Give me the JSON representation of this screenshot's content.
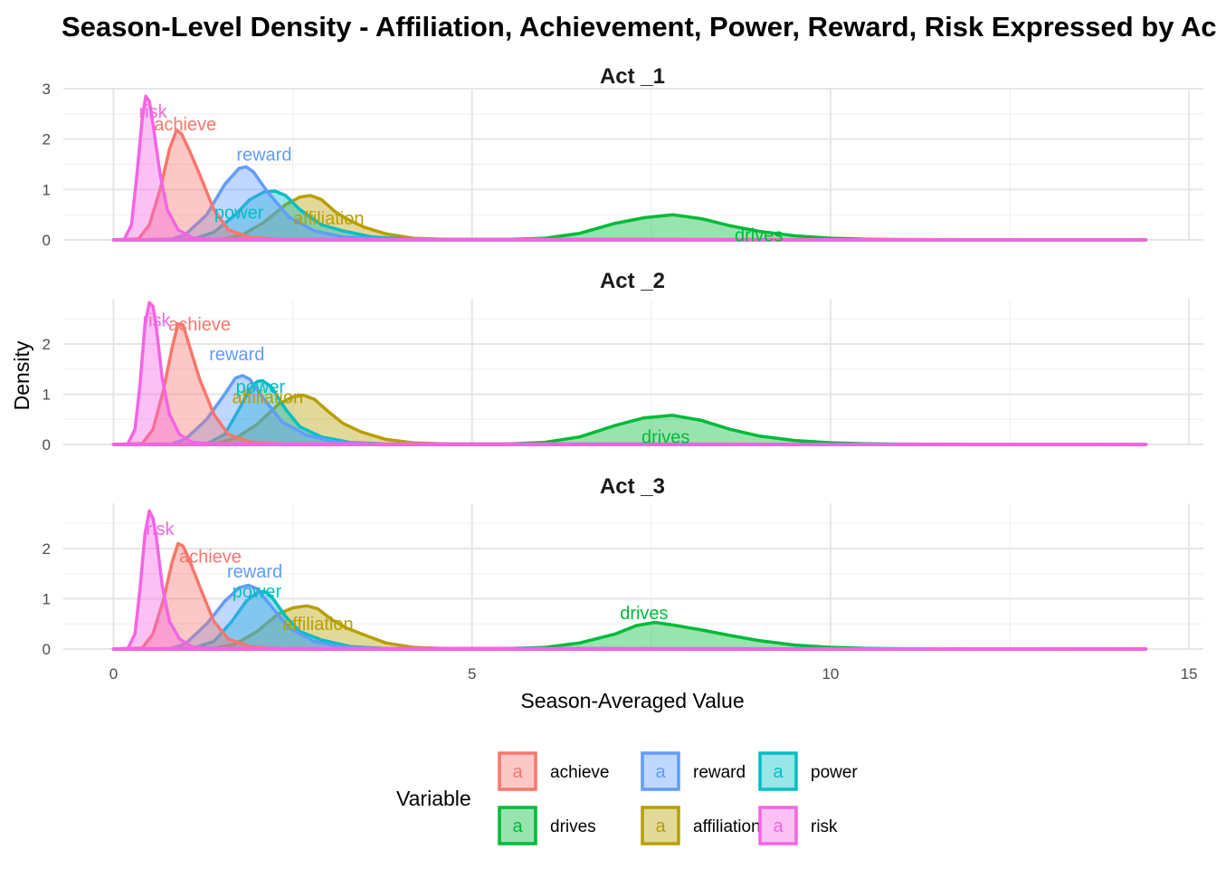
{
  "chart_data": {
    "type": "area",
    "title": "Season-Level Density - Affiliation, Achievement, Power, Reward, Risk Expressed by Act",
    "xlabel": "Season-Averaged Value",
    "ylabel": "Density",
    "xlim": [
      -0.7,
      15.2
    ],
    "x_ticks": [
      0,
      5,
      10,
      15
    ],
    "grid": true,
    "legend": {
      "title": "Variable",
      "position": "bottom",
      "key_glyph": "a",
      "items": [
        {
          "name": "achieve",
          "color": "#F8766D"
        },
        {
          "name": "drives",
          "color": "#00BA38"
        },
        {
          "name": "reward",
          "color": "#619CFF"
        },
        {
          "name": "affiliation",
          "color": "#B79F00"
        },
        {
          "name": "power",
          "color": "#00BFC4"
        },
        {
          "name": "risk",
          "color": "#F564E3"
        }
      ]
    },
    "panels": [
      {
        "strip": "Act _1",
        "ylim": [
          0,
          3
        ],
        "y_ticks": [
          0,
          1,
          2,
          3
        ],
        "series": [
          {
            "name": "drives",
            "x": [
              0,
              4.5,
              5.5,
              6,
              6.5,
              7,
              7.4,
              7.8,
              8.2,
              8.6,
              9,
              9.5,
              10,
              10.5,
              11,
              12,
              13,
              14.4
            ],
            "y": [
              0,
              0.005,
              0.01,
              0.03,
              0.13,
              0.33,
              0.44,
              0.5,
              0.42,
              0.28,
              0.17,
              0.08,
              0.035,
              0.015,
              0.008,
              0.004,
              0.002,
              0
            ],
            "label_xy": [
              9,
              0.1
            ]
          },
          {
            "name": "affiliation",
            "x": [
              0,
              1.5,
              1.8,
              2.1,
              2.4,
              2.6,
              2.75,
              2.9,
              3.1,
              3.3,
              3.5,
              3.8,
              4.2,
              4.8,
              14.4
            ],
            "y": [
              0,
              0.01,
              0.1,
              0.35,
              0.7,
              0.85,
              0.88,
              0.8,
              0.55,
              0.38,
              0.25,
              0.12,
              0.03,
              0.005,
              0
            ],
            "label_xy": [
              3.0,
              0.43
            ]
          },
          {
            "name": "power",
            "x": [
              0,
              1.1,
              1.4,
              1.7,
              1.9,
              2.1,
              2.25,
              2.4,
              2.6,
              2.9,
              3.2,
              3.6,
              4.2,
              14.4
            ],
            "y": [
              0,
              0.01,
              0.15,
              0.5,
              0.8,
              0.95,
              0.97,
              0.88,
              0.6,
              0.3,
              0.18,
              0.06,
              0.01,
              0
            ],
            "label_xy": [
              1.75,
              0.55
            ]
          },
          {
            "name": "reward",
            "x": [
              0,
              0.8,
              1.0,
              1.3,
              1.55,
              1.75,
              1.85,
              1.95,
              2.15,
              2.45,
              2.8,
              3.2,
              3.8,
              14.4
            ],
            "y": [
              0,
              0.01,
              0.1,
              0.5,
              1.1,
              1.42,
              1.45,
              1.35,
              0.95,
              0.45,
              0.18,
              0.06,
              0.01,
              0
            ],
            "label_xy": [
              2.1,
              1.7
            ]
          },
          {
            "name": "achieve",
            "x": [
              0,
              0.35,
              0.5,
              0.65,
              0.78,
              0.88,
              0.95,
              1.05,
              1.2,
              1.4,
              1.6,
              1.9,
              2.3,
              14.4
            ],
            "y": [
              0,
              0.02,
              0.3,
              1.0,
              1.8,
              2.18,
              2.1,
              1.8,
              1.3,
              0.6,
              0.2,
              0.05,
              0.01,
              0
            ],
            "label_xy": [
              1.0,
              2.3
            ]
          },
          {
            "name": "risk",
            "x": [
              0,
              0.15,
              0.25,
              0.32,
              0.4,
              0.45,
              0.5,
              0.55,
              0.65,
              0.75,
              0.9,
              1.1,
              1.4,
              14.4
            ],
            "y": [
              0,
              0.01,
              0.3,
              1.2,
              2.4,
              2.85,
              2.75,
              2.3,
              1.3,
              0.6,
              0.2,
              0.04,
              0.01,
              0
            ],
            "label_xy": [
              0.55,
              2.55
            ]
          }
        ]
      },
      {
        "strip": "Act _2",
        "ylim": [
          0,
          2.9
        ],
        "y_ticks": [
          0,
          1,
          2
        ],
        "series": [
          {
            "name": "drives",
            "x": [
              0,
              4.5,
              5.5,
              6,
              6.5,
              7,
              7.4,
              7.8,
              8.2,
              8.6,
              9,
              9.5,
              10,
              10.5,
              11,
              12,
              13,
              14.4
            ],
            "y": [
              0,
              0.005,
              0.01,
              0.04,
              0.15,
              0.38,
              0.53,
              0.58,
              0.48,
              0.3,
              0.17,
              0.08,
              0.035,
              0.015,
              0.008,
              0.004,
              0.002,
              0
            ],
            "label_xy": [
              7.7,
              0.15
            ]
          },
          {
            "name": "affiliation",
            "x": [
              0,
              1.4,
              1.7,
              2.0,
              2.3,
              2.5,
              2.65,
              2.8,
              3.0,
              3.2,
              3.45,
              3.8,
              4.2,
              4.8,
              14.4
            ],
            "y": [
              0,
              0.01,
              0.12,
              0.4,
              0.8,
              0.95,
              0.98,
              0.9,
              0.65,
              0.42,
              0.25,
              0.1,
              0.03,
              0.005,
              0
            ],
            "label_xy": [
              2.15,
              0.95
            ]
          },
          {
            "name": "power",
            "x": [
              0,
              1.3,
              1.55,
              1.75,
              1.9,
              2.0,
              2.08,
              2.2,
              2.4,
              2.6,
              2.9,
              3.3,
              3.8,
              14.4
            ],
            "y": [
              0,
              0.01,
              0.2,
              0.7,
              1.1,
              1.25,
              1.27,
              1.15,
              0.7,
              0.35,
              0.15,
              0.04,
              0.01,
              0
            ],
            "label_xy": [
              2.05,
              1.15
            ]
          },
          {
            "name": "reward",
            "x": [
              0,
              0.8,
              1.0,
              1.3,
              1.55,
              1.7,
              1.8,
              1.9,
              2.1,
              2.35,
              2.7,
              3.1,
              3.6,
              14.4
            ],
            "y": [
              0,
              0.01,
              0.1,
              0.5,
              1.0,
              1.32,
              1.37,
              1.3,
              0.9,
              0.45,
              0.18,
              0.05,
              0.01,
              0
            ],
            "label_xy": [
              1.72,
              1.8
            ]
          },
          {
            "name": "achieve",
            "x": [
              0,
              0.4,
              0.55,
              0.7,
              0.82,
              0.9,
              0.97,
              1.05,
              1.2,
              1.4,
              1.6,
              1.9,
              2.3,
              14.4
            ],
            "y": [
              0,
              0.02,
              0.3,
              1.1,
              1.95,
              2.4,
              2.38,
              2.0,
              1.3,
              0.6,
              0.2,
              0.05,
              0.01,
              0
            ],
            "label_xy": [
              1.2,
              2.4
            ]
          },
          {
            "name": "risk",
            "x": [
              0,
              0.2,
              0.3,
              0.37,
              0.44,
              0.5,
              0.55,
              0.6,
              0.68,
              0.78,
              0.92,
              1.1,
              1.4,
              14.4
            ],
            "y": [
              0,
              0.01,
              0.3,
              1.2,
              2.4,
              2.82,
              2.75,
              2.3,
              1.3,
              0.6,
              0.2,
              0.04,
              0.01,
              0
            ],
            "label_xy": [
              0.6,
              2.48
            ]
          }
        ]
      },
      {
        "strip": "Act _3",
        "ylim": [
          0,
          2.9
        ],
        "y_ticks": [
          0,
          1,
          2
        ],
        "series": [
          {
            "name": "drives",
            "x": [
              0,
              4.5,
              5.5,
              6,
              6.5,
              7,
              7.3,
              7.55,
              7.8,
              8.2,
              8.6,
              9,
              9.5,
              10,
              10.5,
              11,
              12,
              13,
              14.4
            ],
            "y": [
              0,
              0.005,
              0.01,
              0.03,
              0.12,
              0.3,
              0.47,
              0.53,
              0.48,
              0.38,
              0.27,
              0.17,
              0.08,
              0.035,
              0.015,
              0.008,
              0.004,
              0.002,
              0
            ],
            "label_xy": [
              7.4,
              0.72
            ]
          },
          {
            "name": "affiliation",
            "x": [
              0,
              1.4,
              1.7,
              2.0,
              2.3,
              2.5,
              2.7,
              2.85,
              3.05,
              3.25,
              3.5,
              3.8,
              4.2,
              4.8,
              14.4
            ],
            "y": [
              0,
              0.01,
              0.1,
              0.35,
              0.7,
              0.82,
              0.86,
              0.8,
              0.58,
              0.42,
              0.28,
              0.12,
              0.03,
              0.005,
              0
            ],
            "label_xy": [
              2.85,
              0.5
            ]
          },
          {
            "name": "power",
            "x": [
              0,
              1.1,
              1.4,
              1.65,
              1.85,
              2.0,
              2.1,
              2.2,
              2.4,
              2.6,
              2.9,
              3.3,
              3.8,
              14.4
            ],
            "y": [
              0,
              0.01,
              0.15,
              0.55,
              0.95,
              1.12,
              1.15,
              1.05,
              0.65,
              0.35,
              0.18,
              0.05,
              0.01,
              0
            ],
            "label_xy": [
              2.0,
              1.15
            ]
          },
          {
            "name": "reward",
            "x": [
              0,
              0.8,
              1.0,
              1.3,
              1.55,
              1.75,
              1.88,
              2.0,
              2.2,
              2.45,
              2.8,
              3.2,
              3.7,
              14.4
            ],
            "y": [
              0,
              0.01,
              0.1,
              0.5,
              0.95,
              1.22,
              1.27,
              1.2,
              0.85,
              0.42,
              0.15,
              0.04,
              0.01,
              0
            ],
            "label_xy": [
              1.97,
              1.55
            ]
          },
          {
            "name": "achieve",
            "x": [
              0,
              0.4,
              0.55,
              0.7,
              0.82,
              0.9,
              0.97,
              1.05,
              1.2,
              1.4,
              1.6,
              1.9,
              2.3,
              14.4
            ],
            "y": [
              0,
              0.02,
              0.3,
              1.0,
              1.75,
              2.1,
              2.05,
              1.8,
              1.25,
              0.55,
              0.2,
              0.05,
              0.01,
              0
            ],
            "label_xy": [
              1.35,
              1.85
            ]
          },
          {
            "name": "risk",
            "x": [
              0,
              0.2,
              0.3,
              0.37,
              0.44,
              0.5,
              0.55,
              0.6,
              0.68,
              0.78,
              0.92,
              1.1,
              1.4,
              14.4
            ],
            "y": [
              0,
              0.01,
              0.3,
              1.2,
              2.3,
              2.75,
              2.6,
              2.2,
              1.25,
              0.55,
              0.2,
              0.04,
              0.01,
              0
            ],
            "label_xy": [
              0.65,
              2.4
            ]
          }
        ]
      }
    ]
  }
}
